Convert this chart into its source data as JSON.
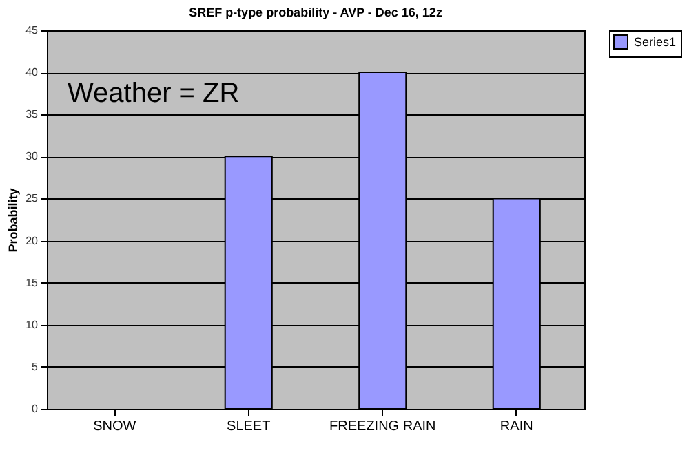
{
  "chart_data": {
    "type": "bar",
    "title": "SREF p-type probability - AVP - Dec 16, 12z",
    "ylabel": "Probability",
    "categories": [
      "SNOW",
      "SLEET",
      "FREEZING RAIN",
      "RAIN"
    ],
    "series": [
      {
        "name": "Series1",
        "color": "#9999ff",
        "values": [
          0,
          30,
          40,
          25
        ]
      }
    ],
    "ylim": [
      0,
      45
    ],
    "yticks": [
      0,
      5,
      10,
      15,
      20,
      25,
      30,
      35,
      40,
      45
    ],
    "grid": "y",
    "legend": "right",
    "annotations": [
      "Weather = ZR"
    ]
  }
}
